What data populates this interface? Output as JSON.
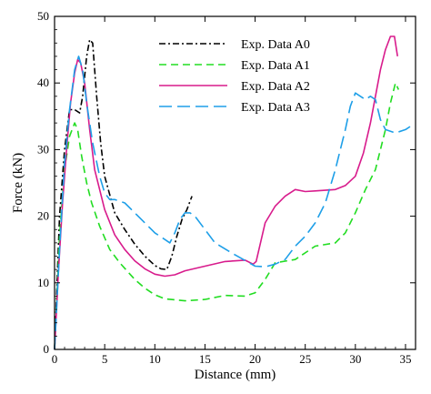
{
  "chart_data": {
    "type": "line",
    "title": "",
    "xlabel": "Distance (mm)",
    "ylabel": "Force (kN)",
    "xlim": [
      0,
      36
    ],
    "ylim": [
      0,
      50
    ],
    "xticks": [
      "0",
      "5",
      "10",
      "15",
      "20",
      "25",
      "30",
      "35"
    ],
    "yticks": [
      "0",
      "10",
      "20",
      "30",
      "40",
      "50"
    ],
    "grid": false,
    "legend_position": "top-center",
    "series": [
      {
        "name": "Exp. Data  A0",
        "color": "#000000",
        "dash": "dashdot",
        "x": [
          0,
          0.5,
          1.0,
          1.5,
          2.0,
          2.5,
          2.8,
          3.2,
          3.5,
          3.8,
          4.2,
          4.6,
          5.0,
          6.0,
          7.0,
          8.0,
          9.0,
          10.0,
          10.6,
          11.2,
          11.7,
          12.2,
          12.7,
          13.2,
          13.7
        ],
        "y": [
          0,
          20,
          30,
          36,
          36,
          35.5,
          38,
          44,
          46.5,
          46,
          38,
          31,
          26,
          20.5,
          18,
          15.8,
          14,
          12.6,
          12.1,
          12.0,
          14,
          17,
          19.5,
          21,
          23
        ]
      },
      {
        "name": "Exp. Data  A1",
        "color": "#22dd22",
        "dash": "dashed",
        "x": [
          0,
          0.5,
          1.0,
          1.5,
          2.0,
          2.3,
          2.7,
          3.2,
          3.7,
          4.5,
          5.5,
          6.5,
          8.0,
          9.0,
          10.0,
          11.0,
          13.0,
          15.0,
          17.0,
          19.0,
          20.0,
          21.0,
          22.0,
          24.0,
          26.0,
          28.0,
          29.0,
          30.0,
          31.0,
          32.0,
          33.0,
          33.5,
          34.0,
          34.3
        ],
        "y": [
          0,
          17,
          27,
          32,
          34,
          33,
          29,
          25,
          22,
          18.5,
          15,
          13,
          10.5,
          9.2,
          8.2,
          7.6,
          7.3,
          7.5,
          8.1,
          8.0,
          8.5,
          10.5,
          13,
          13.5,
          15.5,
          16,
          17.5,
          20.5,
          24,
          27,
          33,
          37,
          40,
          39
        ]
      },
      {
        "name": "Exp. Data  A2",
        "color": "#d81b8c",
        "dash": "solid",
        "x": [
          0,
          0.4,
          0.8,
          1.2,
          1.6,
          2.0,
          2.3,
          2.6,
          3.0,
          3.5,
          4.0,
          5.0,
          6.0,
          7.0,
          8.0,
          9.0,
          10.0,
          11.0,
          12.0,
          13.0,
          15.0,
          17.0,
          19.0,
          19.8,
          20.1,
          21.0,
          22.0,
          23.0,
          24.0,
          25.0,
          26.0,
          28.0,
          29.0,
          30.0,
          30.8,
          31.5,
          32.0,
          32.5,
          33.0,
          33.5,
          33.9,
          34.2
        ],
        "y": [
          0,
          12,
          22,
          30,
          37,
          41.5,
          43.5,
          43,
          40,
          33,
          27,
          21,
          17.2,
          15,
          13.3,
          12.1,
          11.3,
          11.0,
          11.2,
          11.8,
          12.5,
          13.2,
          13.4,
          12.8,
          13.2,
          19,
          21.5,
          23,
          24,
          23.7,
          23.8,
          24,
          24.6,
          26,
          29.5,
          34,
          38,
          42,
          45,
          47,
          47,
          44
        ]
      },
      {
        "name": "Exp. Data  A3",
        "color": "#1e9fe8",
        "dash": "longdash",
        "x": [
          0,
          0.5,
          1.0,
          1.5,
          2.0,
          2.4,
          2.8,
          3.2,
          3.8,
          4.5,
          5.0,
          5.5,
          6.0,
          7.0,
          8.0,
          9.0,
          10.0,
          11.0,
          11.5,
          12.0,
          12.5,
          13.0,
          13.5,
          14.0,
          15.0,
          16.0,
          18.0,
          20.0,
          21.0,
          22.0,
          23.0,
          24.0,
          25.0,
          26.0,
          27.0,
          28.0,
          29.0,
          29.5,
          30.0,
          30.5,
          31.0,
          31.5,
          32.0,
          32.5,
          33.0,
          34.0,
          35.0,
          35.5
        ],
        "y": [
          0,
          15,
          28,
          36,
          42,
          44,
          42,
          37,
          31,
          26,
          23.5,
          22.5,
          22.5,
          22,
          20.5,
          19,
          17.5,
          16.5,
          16,
          17.5,
          19.5,
          20.5,
          20.5,
          20,
          18,
          16,
          14.2,
          12.5,
          12.4,
          12.8,
          13.5,
          15.5,
          17,
          19,
          22,
          27,
          33,
          36.5,
          38.5,
          38,
          37.5,
          38,
          37.5,
          34.5,
          33,
          32.5,
          33,
          33.5
        ]
      }
    ]
  }
}
